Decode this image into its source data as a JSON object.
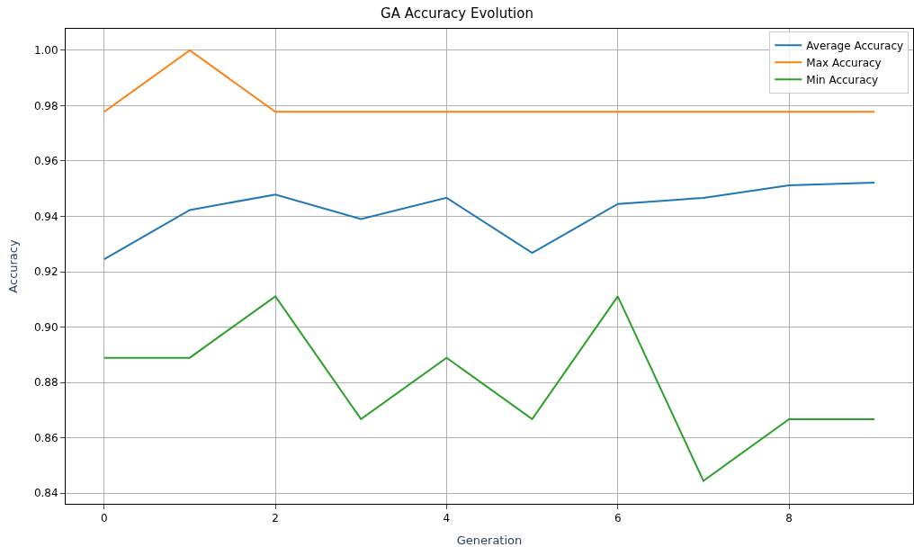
{
  "chart_data": {
    "type": "line",
    "title": "GA Accuracy Evolution",
    "xlabel": "Generation",
    "ylabel": "Accuracy",
    "x": [
      0,
      1,
      2,
      3,
      4,
      5,
      6,
      7,
      8,
      9
    ],
    "series": [
      {
        "name": "Average Accuracy",
        "color": "#1f77b4",
        "values": [
          0.9245,
          0.9423,
          0.9479,
          0.939,
          0.9467,
          0.9268,
          0.9445,
          0.9467,
          0.9512,
          0.9522
        ]
      },
      {
        "name": "Max Accuracy",
        "color": "#ff7f0e",
        "values": [
          0.9778,
          1.0,
          0.9778,
          0.9778,
          0.9778,
          0.9778,
          0.9778,
          0.9778,
          0.9778,
          0.9778
        ]
      },
      {
        "name": "Min Accuracy",
        "color": "#2ca02c",
        "values": [
          0.8889,
          0.8889,
          0.9111,
          0.8667,
          0.8889,
          0.8667,
          0.9111,
          0.8444,
          0.8667,
          0.8667
        ]
      }
    ],
    "xlim": [
      -0.45,
      9.45
    ],
    "xticks": [
      0,
      2,
      4,
      6,
      8
    ],
    "ylim": [
      0.8361,
      1.0078
    ],
    "yticks": [
      {
        "value": 0.84,
        "label": "0.84"
      },
      {
        "value": 0.86,
        "label": "0.86"
      },
      {
        "value": 0.88,
        "label": "0.88"
      },
      {
        "value": 0.9,
        "label": "0.90"
      },
      {
        "value": 0.92,
        "label": "0.92"
      },
      {
        "value": 0.94,
        "label": "0.94"
      },
      {
        "value": 0.96,
        "label": "0.96"
      },
      {
        "value": 0.98,
        "label": "0.98"
      },
      {
        "value": 1.0,
        "label": "1.00"
      }
    ],
    "grid": true,
    "legend": "top right",
    "marker": "none",
    "line_style": "solid"
  }
}
